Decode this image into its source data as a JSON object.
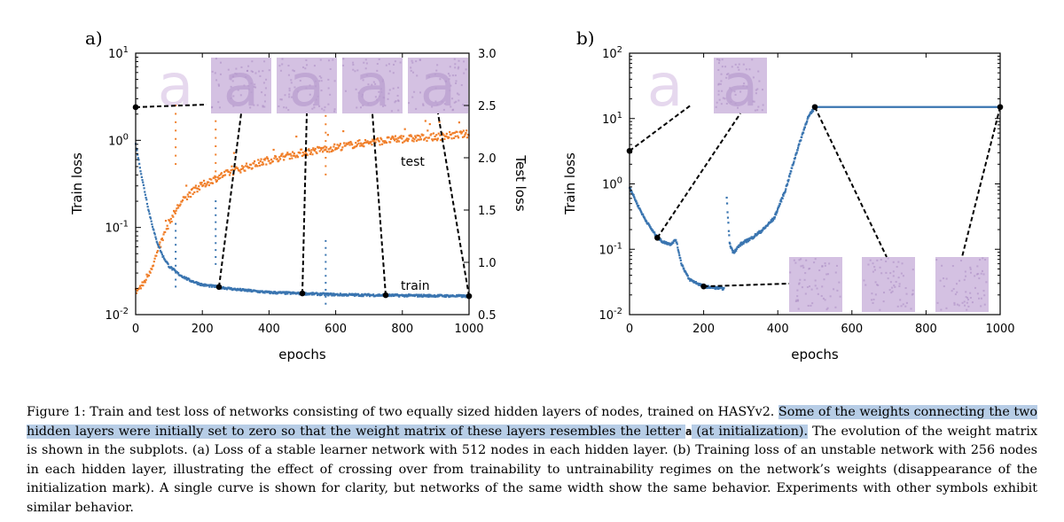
{
  "figure": {
    "panel_a_label": "a)",
    "panel_b_label": "b)",
    "ylabel_train": "Train loss",
    "ylabel_test": "Test loss",
    "xlabel": "epochs",
    "label_test": "test",
    "label_train": "train",
    "thumb_letter": "a"
  },
  "colors": {
    "train": "#3a75b0",
    "test": "#f07f2a",
    "thumb": "#cdb6dd",
    "thumb_letter": "#e6d8ee"
  },
  "caption": {
    "part1": "Figure 1: Train and test loss of networks consisting of two equally sized hidden layers of nodes, trained on HASYv2. ",
    "highlight": "Some of the weights connecting the two hidden layers were initially set to zero so that the weight matrix of these layers resembles the letter ",
    "letter": "a",
    "highlight_end": " (at initialization).",
    "part2": " The evolution of the weight matrix is shown in the subplots. (a) Loss of a stable learner network with 512 nodes in each hidden layer. (b) Training loss of an unstable network with 256 nodes in each hidden layer, illustrating the effect of crossing over from trainability to untrainability regimes on the network’s weights (disappearance of the initialization mark). A single curve is shown for clarity, but networks of the same width show the same behavior. Experiments with other symbols exhibit similar behavior."
  },
  "chart_data": [
    {
      "type": "scatter",
      "title": "a)",
      "xlabel": "epochs",
      "ylabel": "Train loss",
      "y2label": "Test loss",
      "xlim": [
        0,
        1000
      ],
      "ylim": [
        0.01,
        10
      ],
      "yscale": "log",
      "y2lim": [
        0.5,
        3.0
      ],
      "xticks": [
        "0",
        "200",
        "400",
        "600",
        "800",
        "1000"
      ],
      "yticks": [
        "10^-2",
        "10^-1",
        "10^0",
        "10^1"
      ],
      "y2ticks": [
        "0.5",
        "1.0",
        "1.5",
        "2.0",
        "2.5",
        "3.0"
      ],
      "series": [
        {
          "name": "train",
          "axis": "left",
          "x": [
            0,
            20,
            40,
            60,
            80,
            100,
            130,
            160,
            200,
            240,
            300,
            400,
            500,
            600,
            700,
            800,
            900,
            1000
          ],
          "y": [
            0.9,
            0.35,
            0.15,
            0.075,
            0.048,
            0.036,
            0.029,
            0.025,
            0.022,
            0.021,
            0.0195,
            0.018,
            0.0175,
            0.017,
            0.0168,
            0.0166,
            0.0165,
            0.0163
          ],
          "spikes": [
            [
              120,
              0.11
            ],
            [
              240,
              0.2
            ],
            [
              570,
              0.07
            ]
          ]
        },
        {
          "name": "test",
          "axis": "right",
          "x": [
            0,
            20,
            40,
            60,
            80,
            100,
            130,
            160,
            200,
            250,
            300,
            400,
            500,
            600,
            700,
            800,
            900,
            1000
          ],
          "y": [
            0.72,
            0.78,
            0.9,
            1.05,
            1.22,
            1.38,
            1.55,
            1.65,
            1.74,
            1.82,
            1.88,
            1.98,
            2.05,
            2.1,
            2.15,
            2.18,
            2.2,
            2.23
          ],
          "spikes": [
            [
              120,
              2.5
            ],
            [
              240,
              2.35
            ],
            [
              570,
              2.4
            ]
          ]
        }
      ],
      "snapshots_epochs": [
        0,
        250,
        500,
        750,
        1000
      ]
    },
    {
      "type": "scatter",
      "title": "b)",
      "xlabel": "epochs",
      "ylabel": "Train loss",
      "xlim": [
        0,
        1000
      ],
      "ylim": [
        0.01,
        100
      ],
      "yscale": "log",
      "xticks": [
        "0",
        "200",
        "400",
        "600",
        "800",
        "1000"
      ],
      "yticks": [
        "10^-2",
        "10^-1",
        "10^0",
        "10^1",
        "10^2"
      ],
      "series": [
        {
          "name": "train",
          "x": [
            0,
            20,
            40,
            60,
            75,
            90,
            110,
            125,
            140,
            160,
            200,
            255,
            262,
            270,
            280,
            300,
            330,
            360,
            390,
            420,
            450,
            480,
            500,
            600,
            800,
            1000
          ],
          "y": [
            0.9,
            0.5,
            0.3,
            0.2,
            0.15,
            0.13,
            0.12,
            0.14,
            0.06,
            0.035,
            0.027,
            0.025,
            0.6,
            0.12,
            0.09,
            0.12,
            0.15,
            0.2,
            0.3,
            0.8,
            3.0,
            10.0,
            15.0,
            15.0,
            15.0,
            15.0
          ]
        }
      ],
      "snapshots_epochs": [
        0,
        75,
        200,
        500,
        1000
      ]
    }
  ]
}
